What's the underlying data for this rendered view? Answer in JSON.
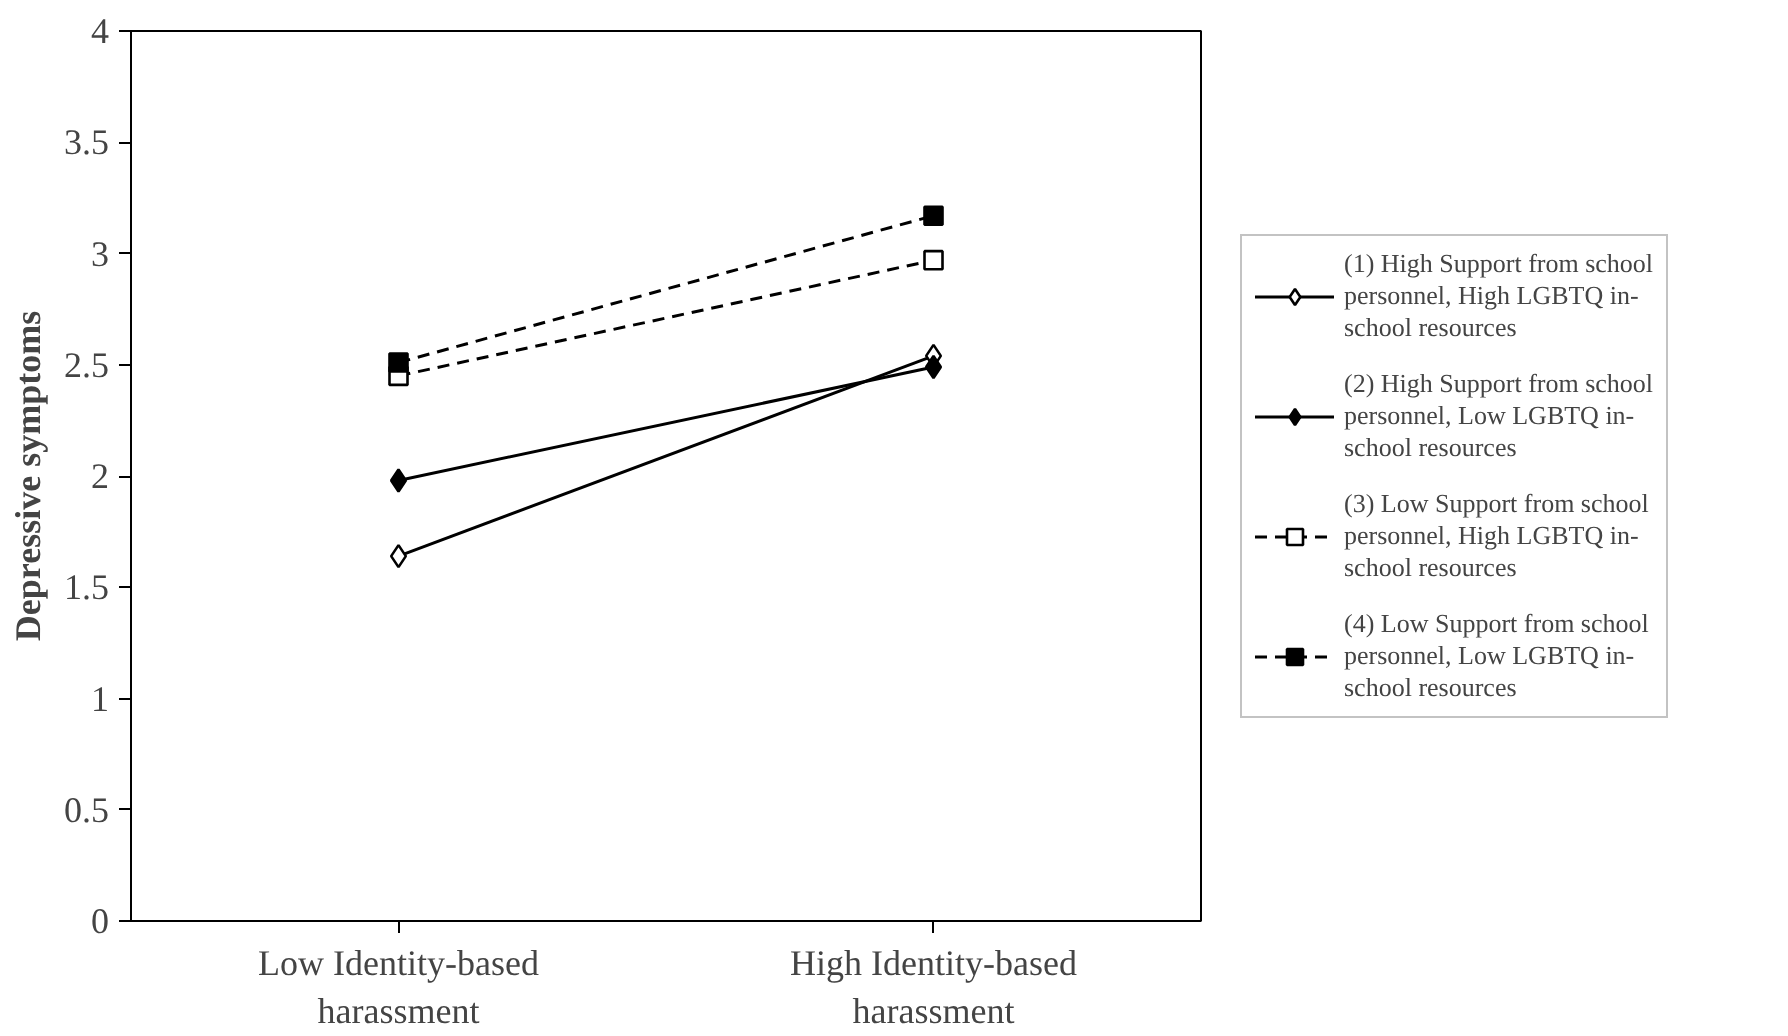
{
  "chart_data": {
    "type": "line",
    "ylabel": "Depressive symptoms",
    "categories": [
      "Low Identity-based harassment",
      "High Identity-based harassment"
    ],
    "ylim": [
      0,
      4
    ],
    "yticks": [
      0,
      0.5,
      1,
      1.5,
      2,
      2.5,
      3,
      3.5,
      4
    ],
    "grid": false,
    "legend": "right",
    "series": [
      {
        "name": "(1) High Support from school personnel, High LGBTQ in-school resources",
        "color": "#000000",
        "colors": [
          "#ffffff",
          "#ffffff"
        ],
        "marker": "diamond",
        "line_style": "solid",
        "values": [
          1.64,
          2.54
        ]
      },
      {
        "name": "(2) High Support from school personnel, Low LGBTQ in-school resources",
        "color": "#000000",
        "colors": [
          "#000000",
          "#000000"
        ],
        "marker": "diamond",
        "line_style": "solid",
        "values": [
          1.98,
          2.49
        ]
      },
      {
        "name": "(3) Low Support from school personnel, High LGBTQ in-school resources",
        "color": "#000000",
        "colors": [
          "#ffffff",
          "#ffffff"
        ],
        "marker": "square",
        "line_style": "dashed",
        "values": [
          2.45,
          2.97
        ]
      },
      {
        "name": "(4) Low Support from school personnel, Low LGBTQ in-school resources",
        "color": "#000000",
        "colors": [
          "#000000",
          "#000000"
        ],
        "marker": "square",
        "line_style": "dashed",
        "values": [
          2.51,
          3.17
        ]
      }
    ]
  }
}
